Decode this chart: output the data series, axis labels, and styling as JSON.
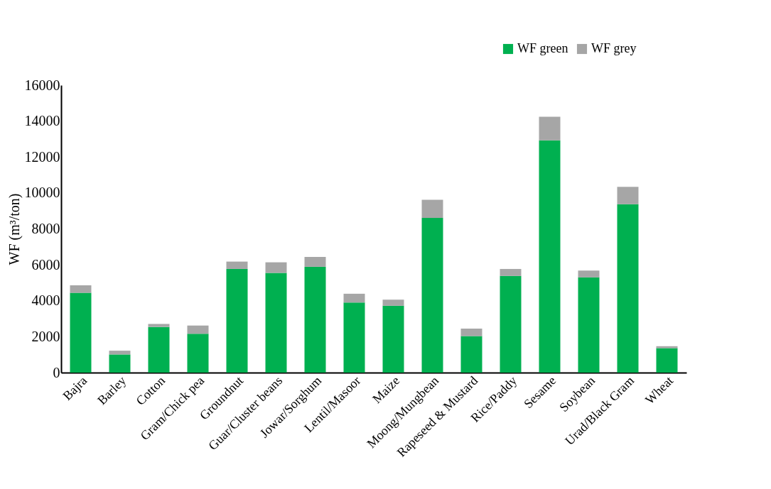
{
  "chart_data": {
    "type": "bar",
    "stacked": true,
    "ylabel": "WF (m³/ton)",
    "categories": [
      "Bajra",
      "Barley",
      "Cotton",
      "Gram/Chick pea",
      "Groundnut",
      "Guar/Cluster beans",
      "Jowar/Sorghum",
      "Lentil/Masoor",
      "Maize",
      "Moong/Mungbean",
      "Rapeseed & Mustard",
      "Rice/Paddy",
      "Sesame",
      "Soybean",
      "Urad/Black Gram",
      "Wheat"
    ],
    "series": [
      {
        "name": "WF green",
        "color": "#00b050",
        "values": [
          4440,
          1010,
          2540,
          2160,
          5770,
          5550,
          5890,
          3900,
          3720,
          8610,
          2030,
          5380,
          12930,
          5300,
          9370,
          1360
        ]
      },
      {
        "name": "WF grey",
        "color": "#a6a6a6",
        "values": [
          420,
          210,
          170,
          460,
          410,
          590,
          550,
          490,
          340,
          1010,
          420,
          390,
          1310,
          380,
          970,
          110
        ]
      }
    ],
    "ylim": [
      0,
      16000
    ],
    "yticks": [
      0,
      2000,
      4000,
      6000,
      8000,
      10000,
      12000,
      14000,
      16000
    ],
    "grid": false,
    "legend": "top right"
  }
}
